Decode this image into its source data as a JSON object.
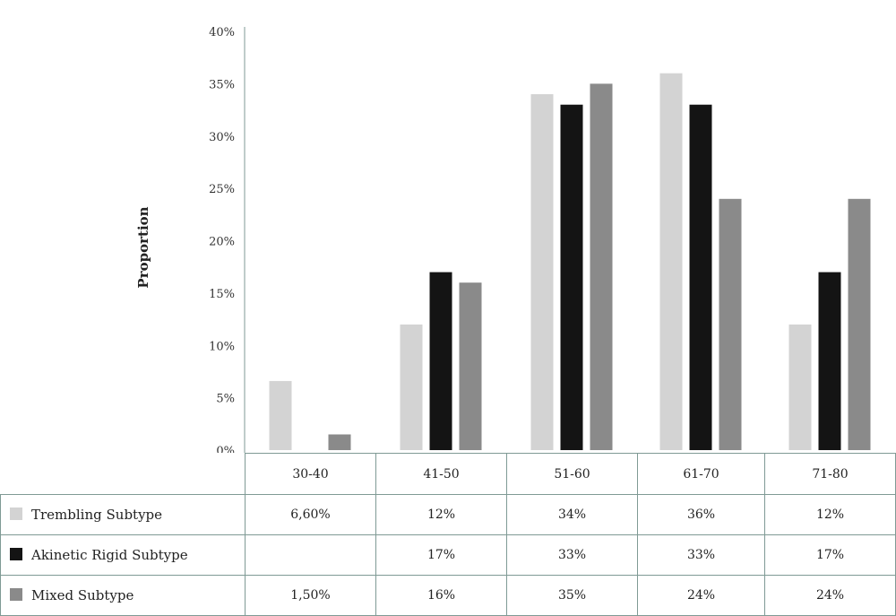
{
  "chart_data": {
    "type": "bar",
    "title": "",
    "ylabel": "Proportion",
    "ylim": [
      0,
      40
    ],
    "yticks": [
      "0%",
      "5%",
      "10%",
      "15%",
      "20%",
      "25%",
      "30%",
      "35%",
      "40%"
    ],
    "categories": [
      "30-40",
      "41-50",
      "51-60",
      "61-70",
      "71-80"
    ],
    "series": [
      {
        "name": "Trembling Subtype",
        "color": "#d3d3d3",
        "values": [
          6.6,
          12,
          34,
          36,
          12
        ],
        "labels": [
          "6,60%",
          "12%",
          "34%",
          "36%",
          "12%"
        ]
      },
      {
        "name": "Akinetic Rigid Subtype",
        "color": "#141414",
        "values": [
          null,
          17,
          33,
          33,
          17
        ],
        "labels": [
          "",
          "17%",
          "33%",
          "33%",
          "17%"
        ]
      },
      {
        "name": "Mixed Subtype",
        "color": "#8a8a8a",
        "values": [
          1.5,
          16,
          35,
          24,
          24
        ],
        "labels": [
          "1,50%",
          "16%",
          "35%",
          "24%",
          "24%"
        ]
      }
    ],
    "legend": "data-table-below",
    "grid": false
  }
}
